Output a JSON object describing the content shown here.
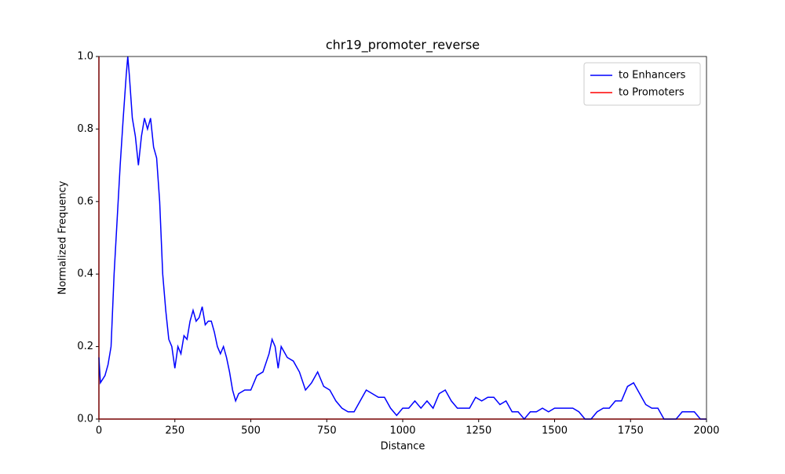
{
  "chart_data": {
    "type": "line",
    "title": "chr19_promoter_reverse",
    "xlabel": "Distance",
    "ylabel": "Normalized Frequency",
    "xlim": [
      0,
      2000
    ],
    "ylim": [
      0,
      1
    ],
    "xticks": [
      0,
      250,
      500,
      750,
      1000,
      1250,
      1500,
      1750,
      2000
    ],
    "yticks": [
      {
        "value": 0,
        "label": "0.0"
      },
      0.2,
      0.4,
      0.6,
      0.8,
      {
        "value": 1,
        "label": "1.0"
      }
    ],
    "legend": "upper right",
    "grid": false,
    "series": [
      {
        "name": "to Enhancers",
        "color": "#0000ff",
        "x": [
          0,
          5,
          20,
          30,
          40,
          50,
          60,
          70,
          80,
          90,
          95,
          100,
          110,
          120,
          130,
          140,
          150,
          160,
          170,
          180,
          190,
          200,
          210,
          220,
          230,
          240,
          250,
          260,
          270,
          280,
          290,
          300,
          310,
          320,
          330,
          340,
          350,
          360,
          370,
          380,
          390,
          400,
          410,
          420,
          430,
          440,
          450,
          460,
          480,
          500,
          520,
          540,
          560,
          570,
          580,
          590,
          600,
          620,
          640,
          660,
          680,
          700,
          720,
          740,
          760,
          780,
          800,
          820,
          840,
          860,
          880,
          900,
          920,
          940,
          960,
          980,
          1000,
          1020,
          1040,
          1060,
          1080,
          1100,
          1120,
          1140,
          1160,
          1180,
          1200,
          1220,
          1240,
          1260,
          1280,
          1300,
          1320,
          1340,
          1360,
          1380,
          1400,
          1420,
          1440,
          1460,
          1480,
          1500,
          1520,
          1540,
          1560,
          1580,
          1600,
          1620,
          1640,
          1660,
          1680,
          1700,
          1720,
          1740,
          1760,
          1780,
          1800,
          1820,
          1840,
          1860,
          1880,
          1900,
          1920,
          1940,
          1960,
          1980,
          2000
        ],
        "values": [
          0.17,
          0.1,
          0.12,
          0.15,
          0.2,
          0.4,
          0.55,
          0.7,
          0.83,
          0.95,
          1.0,
          0.95,
          0.83,
          0.78,
          0.7,
          0.78,
          0.83,
          0.8,
          0.83,
          0.75,
          0.72,
          0.6,
          0.4,
          0.3,
          0.22,
          0.2,
          0.14,
          0.2,
          0.18,
          0.23,
          0.22,
          0.27,
          0.3,
          0.27,
          0.28,
          0.31,
          0.26,
          0.27,
          0.27,
          0.24,
          0.2,
          0.18,
          0.2,
          0.17,
          0.13,
          0.08,
          0.05,
          0.07,
          0.08,
          0.08,
          0.12,
          0.13,
          0.18,
          0.22,
          0.2,
          0.14,
          0.2,
          0.17,
          0.16,
          0.13,
          0.08,
          0.1,
          0.13,
          0.09,
          0.08,
          0.05,
          0.03,
          0.02,
          0.02,
          0.05,
          0.08,
          0.07,
          0.06,
          0.06,
          0.03,
          0.01,
          0.03,
          0.03,
          0.05,
          0.03,
          0.05,
          0.03,
          0.07,
          0.08,
          0.05,
          0.03,
          0.03,
          0.03,
          0.06,
          0.05,
          0.06,
          0.06,
          0.04,
          0.05,
          0.02,
          0.02,
          0.0,
          0.02,
          0.02,
          0.03,
          0.02,
          0.03,
          0.03,
          0.03,
          0.03,
          0.02,
          0.0,
          0.0,
          0.02,
          0.03,
          0.03,
          0.05,
          0.05,
          0.09,
          0.1,
          0.07,
          0.04,
          0.03,
          0.03,
          0.0,
          0.0,
          0.0,
          0.02,
          0.02,
          0.02,
          0.0,
          0.0
        ]
      },
      {
        "name": "to Promoters",
        "color": "#ff0000",
        "x": [
          0,
          0,
          2000
        ],
        "values": [
          1,
          0,
          0
        ]
      }
    ]
  }
}
